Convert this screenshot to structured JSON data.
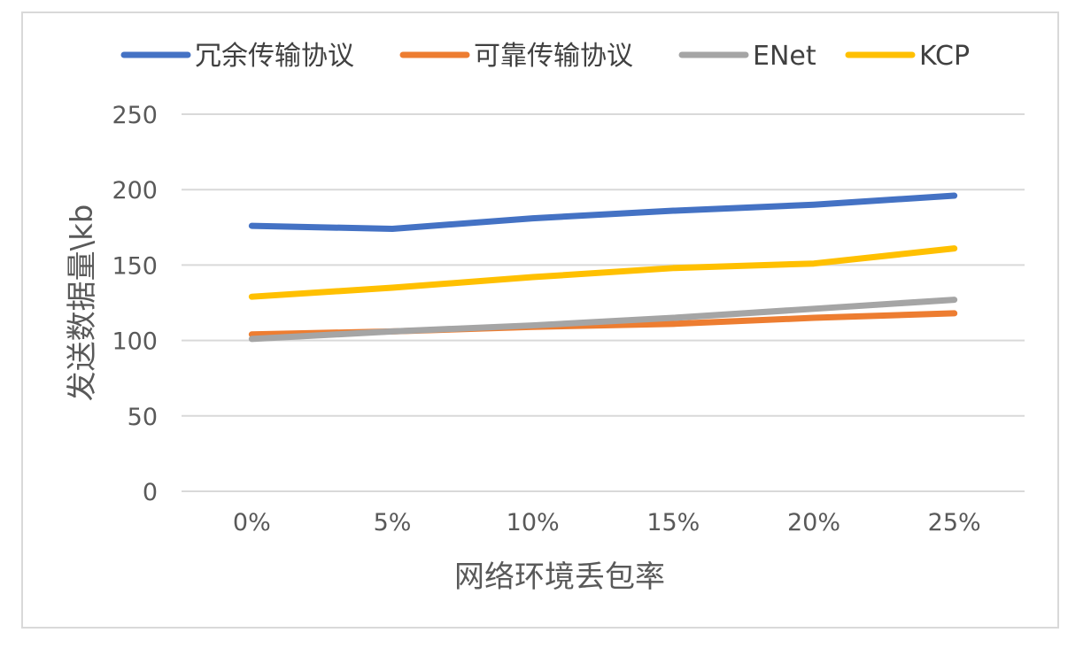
{
  "chart_data": {
    "type": "line",
    "categories": [
      "0%",
      "5%",
      "10%",
      "15%",
      "20%",
      "25%"
    ],
    "series": [
      {
        "name": "冗余传输协议",
        "color": "#4472C4",
        "values": [
          176,
          174,
          181,
          186,
          190,
          196
        ]
      },
      {
        "name": "可靠传输协议",
        "color": "#ED7D31",
        "values": [
          104,
          106,
          109,
          111,
          115,
          118
        ]
      },
      {
        "name": "ENet",
        "color": "#A5A5A5",
        "values": [
          101,
          106,
          110,
          115,
          121,
          127
        ]
      },
      {
        "name": "KCP",
        "color": "#FFC000",
        "values": [
          129,
          135,
          142,
          148,
          151,
          161
        ]
      }
    ],
    "xlabel": "网络环境丢包率",
    "ylabel": "发送数据量\\kb",
    "ylim": [
      0,
      250
    ],
    "yticks": [
      0,
      50,
      100,
      150,
      200,
      250
    ],
    "grid": true,
    "legend_position": "top"
  }
}
